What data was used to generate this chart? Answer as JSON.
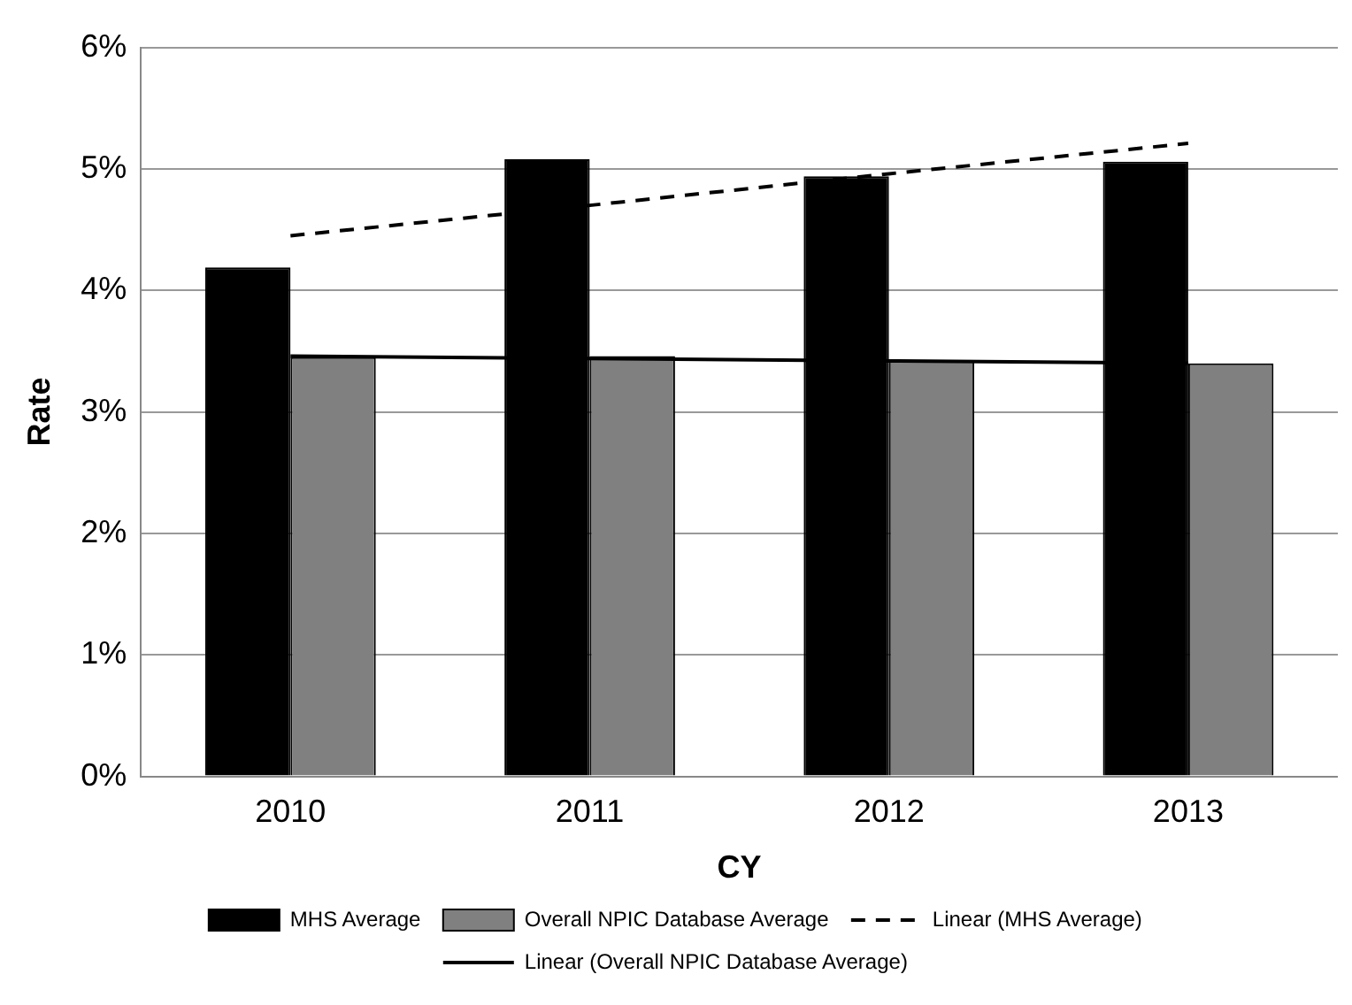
{
  "chart_data": {
    "type": "bar",
    "xlabel": "CY",
    "ylabel": "Rate",
    "categories": [
      "2010",
      "2011",
      "2012",
      "2013"
    ],
    "series": [
      {
        "name": "MHS Average",
        "color": "#000000",
        "values": [
          4.19,
          5.08,
          4.94,
          5.06
        ]
      },
      {
        "name": "Overall NPIC Database Average",
        "color": "#808080",
        "values": [
          3.45,
          3.46,
          3.42,
          3.4
        ]
      },
      {
        "name": "Linear (MHS Average)",
        "type": "line",
        "line_style": "dashed",
        "color": "#000000",
        "values": [
          4.45,
          4.7,
          4.96,
          5.21
        ]
      },
      {
        "name": "Linear (Overall NPIC Database Average)",
        "type": "line",
        "line_style": "solid",
        "color": "#000000",
        "values": [
          3.46,
          3.44,
          3.42,
          3.4
        ]
      }
    ],
    "ylim": [
      0,
      6
    ],
    "yticks": [
      {
        "value": 0,
        "label": "0%"
      },
      {
        "value": 1,
        "label": "1%"
      },
      {
        "value": 2,
        "label": "2%"
      },
      {
        "value": 3,
        "label": "3%"
      },
      {
        "value": 4,
        "label": "4%"
      },
      {
        "value": 5,
        "label": "5%"
      },
      {
        "value": 6,
        "label": "6%"
      }
    ],
    "grid": "y",
    "legend": "bottom",
    "marker": "none"
  }
}
